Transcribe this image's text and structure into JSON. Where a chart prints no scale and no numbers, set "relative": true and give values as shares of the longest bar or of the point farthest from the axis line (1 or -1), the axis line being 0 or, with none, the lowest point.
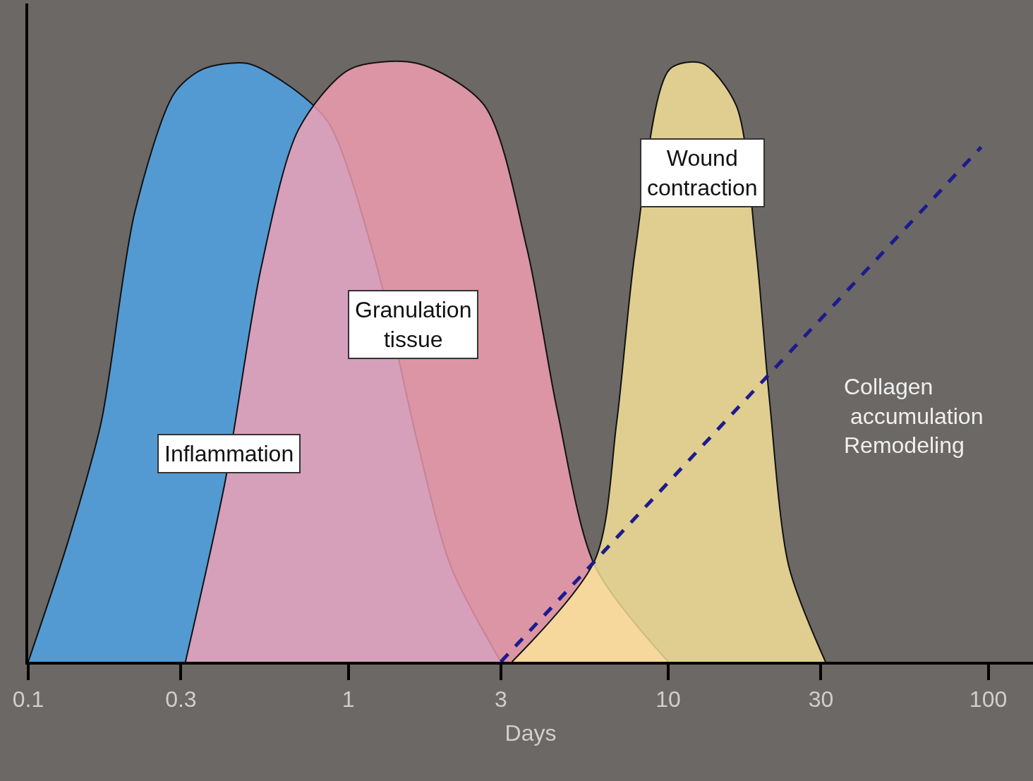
{
  "chart_data": {
    "type": "area",
    "relative": true,
    "xlabel": "Days",
    "log": "x",
    "xlim": [
      0.1,
      138
    ],
    "xticks": [
      {
        "value": 0.1,
        "label": "0.1"
      },
      0.3,
      1,
      3,
      10,
      30,
      100
    ],
    "series": [
      {
        "name": "Inflammation",
        "color": "#4ea6ee",
        "x": [
          0.1,
          0.133,
          0.169,
          0.215,
          0.286,
          0.35,
          0.483,
          0.664,
          0.87,
          1.23,
          1.64,
          2.09,
          3
        ],
        "values": [
          0,
          0.2,
          0.4,
          0.75,
          0.95,
          0.99,
          1,
          0.96,
          0.9,
          0.66,
          0.37,
          0.16,
          0
        ]
      },
      {
        "name": "Granulation\ntissue",
        "color": "#f7a0b4",
        "x": [
          0.31,
          0.412,
          0.535,
          0.7,
          1.01,
          1.64,
          2.66,
          3.62,
          4.5,
          5.9,
          10
        ],
        "values": [
          0,
          0.3,
          0.66,
          0.89,
          0.99,
          1,
          0.93,
          0.69,
          0.42,
          0.16,
          0
        ]
      },
      {
        "name": "Wound\ncontraction",
        "color": "#fde79a",
        "x": [
          3.25,
          5.9,
          6.9,
          7.9,
          10.1,
          12.8,
          16.3,
          18.8,
          20.7,
          23.8,
          31
        ],
        "values": [
          0,
          0.17,
          0.4,
          0.69,
          0.99,
          1,
          0.93,
          0.69,
          0.44,
          0.16,
          0
        ]
      },
      {
        "name": "Collagen\n accumulation\nRemodeling",
        "type": "line",
        "line_style": "dashed",
        "color": "#1c1c8c",
        "x": [
          3,
          95
        ],
        "values": [
          0,
          0.86
        ]
      }
    ]
  }
}
